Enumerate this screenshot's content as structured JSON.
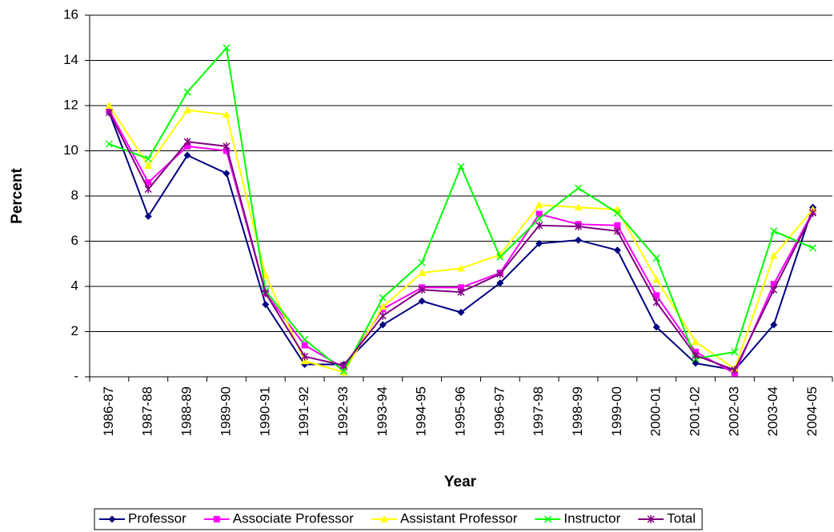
{
  "chart_data": {
    "type": "line",
    "x_label": "Year",
    "y_label": "Percent",
    "categories": [
      "1986-87",
      "1987-88",
      "1988-89",
      "1989-90",
      "1990-91",
      "1991-92",
      "1992-93",
      "1993-94",
      "1994-95",
      "1995-96",
      "1996-97",
      "1997-98",
      "1998-99",
      "1999-00",
      "2000-01",
      "2001-02",
      "2002-03",
      "2003-04",
      "2004-05"
    ],
    "series": [
      {
        "name": "Professor",
        "color": "#000080",
        "marker": "diamond",
        "values": [
          11.7,
          7.1,
          9.8,
          9.0,
          3.2,
          0.55,
          0.55,
          2.3,
          3.35,
          2.85,
          4.15,
          5.9,
          6.05,
          5.6,
          2.2,
          0.6,
          0.3,
          2.3,
          7.5
        ]
      },
      {
        "name": "Associate Professor",
        "color": "#ff00ff",
        "marker": "square",
        "values": [
          11.8,
          8.6,
          10.2,
          10.0,
          3.7,
          1.4,
          0.4,
          3.0,
          3.95,
          3.95,
          4.6,
          7.2,
          6.75,
          6.7,
          3.6,
          1.1,
          0.15,
          4.1,
          7.3
        ]
      },
      {
        "name": "Assistant Professor",
        "color": "#ffff00",
        "marker": "triangle",
        "values": [
          12.0,
          9.35,
          11.8,
          11.6,
          4.5,
          0.7,
          0.2,
          3.1,
          4.6,
          4.8,
          5.4,
          7.6,
          7.5,
          7.4,
          4.3,
          1.55,
          0.35,
          5.35,
          7.4
        ]
      },
      {
        "name": "Instructor",
        "color": "#00ff00",
        "marker": "x",
        "values": [
          10.3,
          9.65,
          12.6,
          14.55,
          3.8,
          1.65,
          0.25,
          3.5,
          5.05,
          9.3,
          5.3,
          7.0,
          8.35,
          7.25,
          5.25,
          0.8,
          1.1,
          6.45,
          5.7
        ]
      },
      {
        "name": "Total",
        "color": "#800080",
        "marker": "star",
        "values": [
          11.7,
          8.3,
          10.4,
          10.2,
          3.7,
          0.9,
          0.5,
          2.7,
          3.85,
          3.75,
          4.55,
          6.7,
          6.65,
          6.45,
          3.3,
          0.95,
          0.3,
          3.85,
          7.25
        ]
      }
    ],
    "ylim": [
      0,
      16
    ],
    "yticks": [
      {
        "value": 0,
        "label": "-"
      },
      2,
      4,
      6,
      8,
      10,
      12,
      14,
      16
    ],
    "grid": true,
    "legend": "bottom"
  }
}
